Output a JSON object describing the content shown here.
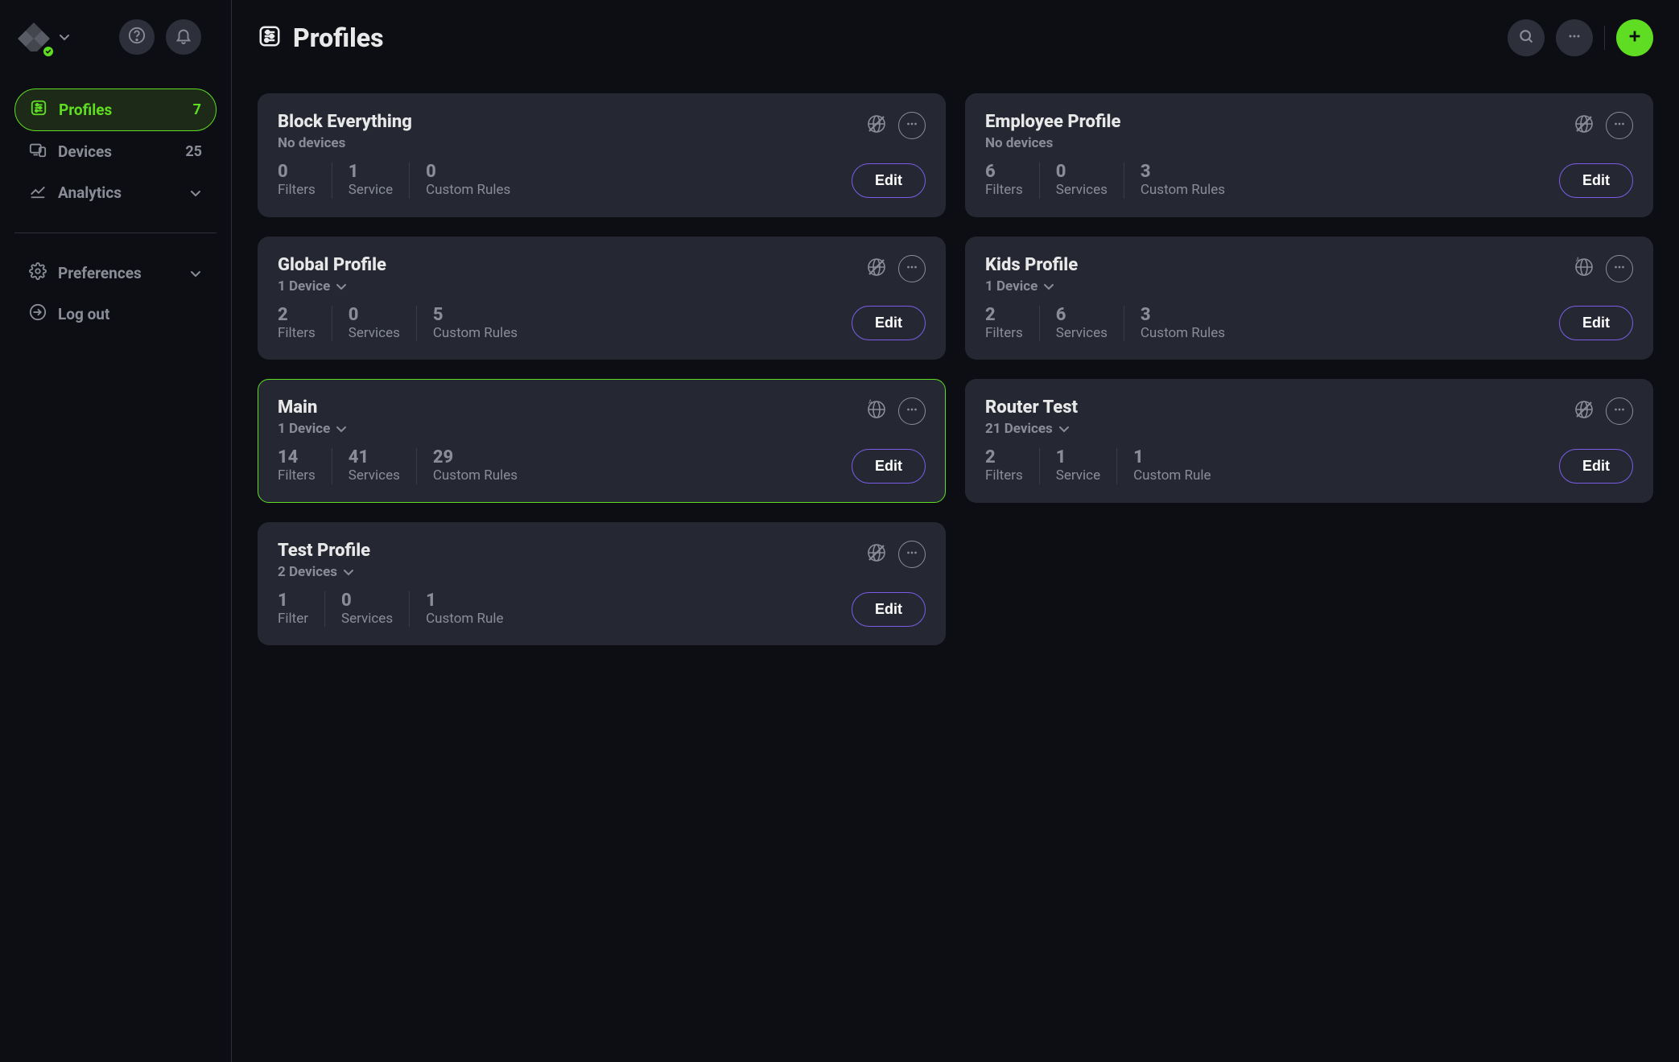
{
  "sidebar": {
    "items": [
      {
        "icon": "sliders",
        "label": "Profiles",
        "count": "7",
        "active": true,
        "chevron": false
      },
      {
        "icon": "devices",
        "label": "Devices",
        "count": "25",
        "active": false,
        "chevron": false
      },
      {
        "icon": "chart",
        "label": "Analytics",
        "count": "",
        "active": false,
        "chevron": true
      }
    ],
    "secondary": [
      {
        "icon": "gear",
        "label": "Preferences",
        "chevron": true
      },
      {
        "icon": "logout",
        "label": "Log out",
        "chevron": false
      }
    ]
  },
  "header": {
    "title": "Profiles"
  },
  "profiles": [
    {
      "name": "Block Everything",
      "sub": "No devices",
      "sub_chevron": false,
      "globe_disabled": true,
      "highlight": false,
      "stats": [
        {
          "num": "0",
          "label": "Filters"
        },
        {
          "num": "1",
          "label": "Service"
        },
        {
          "num": "0",
          "label": "Custom Rules"
        }
      ],
      "edit": "Edit"
    },
    {
      "name": "Employee Profile",
      "sub": "No devices",
      "sub_chevron": false,
      "globe_disabled": true,
      "highlight": false,
      "stats": [
        {
          "num": "6",
          "label": "Filters"
        },
        {
          "num": "0",
          "label": "Services"
        },
        {
          "num": "3",
          "label": "Custom Rules"
        }
      ],
      "edit": "Edit"
    },
    {
      "name": "Global Profile",
      "sub": "1 Device",
      "sub_chevron": true,
      "globe_disabled": true,
      "highlight": false,
      "stats": [
        {
          "num": "2",
          "label": "Filters"
        },
        {
          "num": "0",
          "label": "Services"
        },
        {
          "num": "5",
          "label": "Custom Rules"
        }
      ],
      "edit": "Edit"
    },
    {
      "name": "Kids Profile",
      "sub": "1 Device",
      "sub_chevron": true,
      "globe_disabled": false,
      "highlight": false,
      "stats": [
        {
          "num": "2",
          "label": "Filters"
        },
        {
          "num": "6",
          "label": "Services"
        },
        {
          "num": "3",
          "label": "Custom Rules"
        }
      ],
      "edit": "Edit"
    },
    {
      "name": "Main",
      "sub": "1 Device",
      "sub_chevron": true,
      "globe_disabled": false,
      "highlight": true,
      "stats": [
        {
          "num": "14",
          "label": "Filters"
        },
        {
          "num": "41",
          "label": "Services"
        },
        {
          "num": "29",
          "label": "Custom Rules"
        }
      ],
      "edit": "Edit"
    },
    {
      "name": "Router Test",
      "sub": "21 Devices",
      "sub_chevron": true,
      "globe_disabled": true,
      "highlight": false,
      "stats": [
        {
          "num": "2",
          "label": "Filters"
        },
        {
          "num": "1",
          "label": "Service"
        },
        {
          "num": "1",
          "label": "Custom Rule"
        }
      ],
      "edit": "Edit"
    },
    {
      "name": "Test Profile",
      "sub": "2 Devices",
      "sub_chevron": true,
      "globe_disabled": true,
      "highlight": false,
      "stats": [
        {
          "num": "1",
          "label": "Filter"
        },
        {
          "num": "0",
          "label": "Services"
        },
        {
          "num": "1",
          "label": "Custom Rule"
        }
      ],
      "edit": "Edit"
    }
  ],
  "colors": {
    "bg": "#0c0e14",
    "card": "#252832",
    "muted": "#8a8d97",
    "accent_green": "#5fdd22",
    "accent_purple": "#7c5ce6"
  }
}
